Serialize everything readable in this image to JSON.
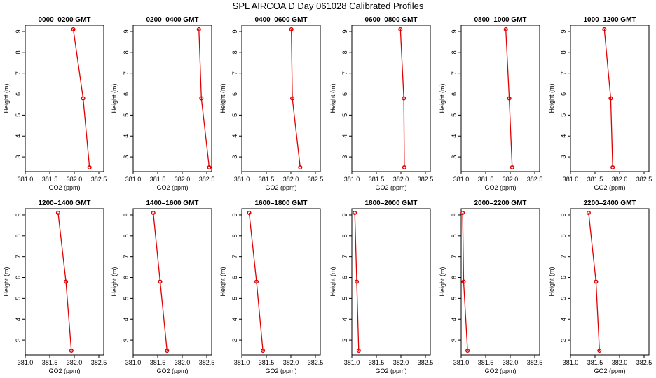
{
  "title": "SPL AIRCOA D  Day 061028  Calibrated Profiles",
  "colors": {
    "series": "#e00000",
    "axis": "#000000"
  },
  "chart_data": [
    {
      "type": "line",
      "title": "0000–0200 GMT",
      "xlabel": "GO2 (ppm)",
      "ylabel": "Height (m)",
      "xlim": [
        381.0,
        382.6
      ],
      "ylim": [
        2.3,
        9.3
      ],
      "xticks": [
        "381.0",
        "381.5",
        "382.0",
        "382.5"
      ],
      "yticks": [
        "3",
        "4",
        "5",
        "6",
        "7",
        "8",
        "9"
      ],
      "x": [
        381.98,
        382.18,
        382.31
      ],
      "y": [
        9.1,
        5.8,
        2.5
      ]
    },
    {
      "type": "line",
      "title": "0200–0400 GMT",
      "xlabel": "GO2 (ppm)",
      "ylabel": "Height (m)",
      "xlim": [
        381.0,
        382.6
      ],
      "ylim": [
        2.3,
        9.3
      ],
      "xticks": [
        "381.0",
        "381.5",
        "382.0",
        "382.5"
      ],
      "yticks": [
        "3",
        "4",
        "5",
        "6",
        "7",
        "8",
        "9"
      ],
      "x": [
        382.34,
        382.39,
        382.55
      ],
      "y": [
        9.1,
        5.8,
        2.5
      ]
    },
    {
      "type": "line",
      "title": "0400–0600 GMT",
      "xlabel": "GO2 (ppm)",
      "ylabel": "Height (m)",
      "xlim": [
        381.0,
        382.6
      ],
      "ylim": [
        2.3,
        9.3
      ],
      "xticks": [
        "381.0",
        "381.5",
        "382.0",
        "382.5"
      ],
      "yticks": [
        "3",
        "4",
        "5",
        "6",
        "7",
        "8",
        "9"
      ],
      "x": [
        382.01,
        382.03,
        382.19
      ],
      "y": [
        9.1,
        5.8,
        2.5
      ]
    },
    {
      "type": "line",
      "title": "0600–0800 GMT",
      "xlabel": "GO2 (ppm)",
      "ylabel": "Height (m)",
      "xlim": [
        381.0,
        382.6
      ],
      "ylim": [
        2.3,
        9.3
      ],
      "xticks": [
        "381.0",
        "381.5",
        "382.0",
        "382.5"
      ],
      "yticks": [
        "3",
        "4",
        "5",
        "6",
        "7",
        "8",
        "9"
      ],
      "x": [
        381.99,
        382.06,
        382.07
      ],
      "y": [
        9.1,
        5.8,
        2.5
      ]
    },
    {
      "type": "line",
      "title": "0800–1000 GMT",
      "xlabel": "GO2 (ppm)",
      "ylabel": "Height (m)",
      "xlim": [
        381.0,
        382.6
      ],
      "ylim": [
        2.3,
        9.3
      ],
      "xticks": [
        "381.0",
        "381.5",
        "382.0",
        "382.5"
      ],
      "yticks": [
        "3",
        "4",
        "5",
        "6",
        "7",
        "8",
        "9"
      ],
      "x": [
        381.91,
        381.98,
        382.04
      ],
      "y": [
        9.1,
        5.8,
        2.5
      ]
    },
    {
      "type": "line",
      "title": "1000–1200 GMT",
      "xlabel": "GO2 (ppm)",
      "ylabel": "Height (m)",
      "xlim": [
        381.0,
        382.6
      ],
      "ylim": [
        2.3,
        9.3
      ],
      "xticks": [
        "381.0",
        "381.5",
        "382.0",
        "382.5"
      ],
      "yticks": [
        "3",
        "4",
        "5",
        "6",
        "7",
        "8",
        "9"
      ],
      "x": [
        381.69,
        381.82,
        381.86
      ],
      "y": [
        9.1,
        5.8,
        2.5
      ]
    },
    {
      "type": "line",
      "title": "1200–1400 GMT",
      "xlabel": "GO2 (ppm)",
      "ylabel": "Height (m)",
      "xlim": [
        381.0,
        382.6
      ],
      "ylim": [
        2.3,
        9.3
      ],
      "xticks": [
        "381.0",
        "381.5",
        "382.0",
        "382.5"
      ],
      "yticks": [
        "3",
        "4",
        "5",
        "6",
        "7",
        "8",
        "9"
      ],
      "x": [
        381.67,
        381.83,
        381.94
      ],
      "y": [
        9.1,
        5.8,
        2.5
      ]
    },
    {
      "type": "line",
      "title": "1400–1600 GMT",
      "xlabel": "GO2 (ppm)",
      "ylabel": "Height (m)",
      "xlim": [
        381.0,
        382.6
      ],
      "ylim": [
        2.3,
        9.3
      ],
      "xticks": [
        "381.0",
        "381.5",
        "382.0",
        "382.5"
      ],
      "yticks": [
        "3",
        "4",
        "5",
        "6",
        "7",
        "8",
        "9"
      ],
      "x": [
        381.41,
        381.55,
        381.69
      ],
      "y": [
        9.1,
        5.8,
        2.5
      ]
    },
    {
      "type": "line",
      "title": "1600–1800 GMT",
      "xlabel": "GO2 (ppm)",
      "ylabel": "Height (m)",
      "xlim": [
        381.0,
        382.6
      ],
      "ylim": [
        2.3,
        9.3
      ],
      "xticks": [
        "381.0",
        "381.5",
        "382.0",
        "382.5"
      ],
      "yticks": [
        "3",
        "4",
        "5",
        "6",
        "7",
        "8",
        "9"
      ],
      "x": [
        381.15,
        381.3,
        381.43
      ],
      "y": [
        9.1,
        5.8,
        2.5
      ]
    },
    {
      "type": "line",
      "title": "1800–2000 GMT",
      "xlabel": "GO2 (ppm)",
      "ylabel": "Height (m)",
      "xlim": [
        381.0,
        382.6
      ],
      "ylim": [
        2.3,
        9.3
      ],
      "xticks": [
        "381.0",
        "381.5",
        "382.0",
        "382.5"
      ],
      "yticks": [
        "3",
        "4",
        "5",
        "6",
        "7",
        "8",
        "9"
      ],
      "x": [
        381.06,
        381.1,
        381.14
      ],
      "y": [
        9.1,
        5.8,
        2.5
      ]
    },
    {
      "type": "line",
      "title": "2000–2200 GMT",
      "xlabel": "GO2 (ppm)",
      "ylabel": "Height (m)",
      "xlim": [
        381.0,
        382.6
      ],
      "ylim": [
        2.3,
        9.3
      ],
      "xticks": [
        "381.0",
        "381.5",
        "382.0",
        "382.5"
      ],
      "yticks": [
        "3",
        "4",
        "5",
        "6",
        "7",
        "8",
        "9"
      ],
      "x": [
        381.03,
        381.05,
        381.13
      ],
      "y": [
        9.1,
        5.8,
        2.5
      ]
    },
    {
      "type": "line",
      "title": "2200–2400 GMT",
      "xlabel": "GO2 (ppm)",
      "ylabel": "Height (m)",
      "xlim": [
        381.0,
        382.6
      ],
      "ylim": [
        2.3,
        9.3
      ],
      "xticks": [
        "381.0",
        "381.5",
        "382.0",
        "382.5"
      ],
      "yticks": [
        "3",
        "4",
        "5",
        "6",
        "7",
        "8",
        "9"
      ],
      "x": [
        381.37,
        381.52,
        381.59
      ],
      "y": [
        9.1,
        5.8,
        2.5
      ]
    }
  ]
}
